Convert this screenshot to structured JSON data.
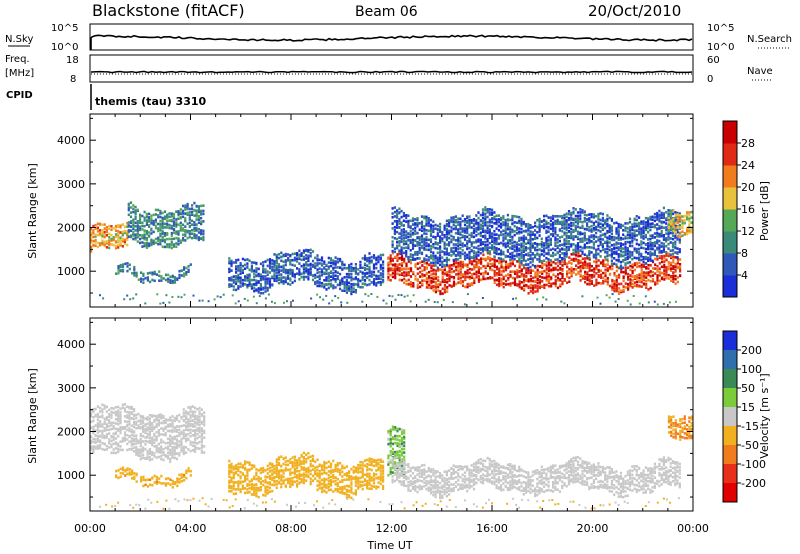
{
  "header": {
    "station": "Blackstone (fitACF)",
    "beam": "Beam 06",
    "date": "20/Oct/2010"
  },
  "nsky_panel": {
    "left_label": "N.Sky",
    "left_ticks": [
      "10^5",
      "10^0"
    ],
    "right_label": "N.Search",
    "right_ticks": [
      "10^5",
      "10^0"
    ]
  },
  "freq_panel": {
    "left_label_line1": "Freq.",
    "left_label_line2": "[MHz]",
    "left_ticks": [
      "18",
      "8"
    ],
    "right_label": "Nave",
    "right_ticks": [
      "60",
      "0"
    ]
  },
  "cpid_panel": {
    "left_label": "CPID",
    "program": "themis (tau) 3310"
  },
  "chart_data": [
    {
      "type": "heatmap",
      "name": "power",
      "xlabel": "",
      "ylabel": "Slant Range [km]",
      "yticks": [
        "1000",
        "2000",
        "3000",
        "4000"
      ],
      "ylim": [
        180,
        4600
      ],
      "colorbar_label": "Power [dB]",
      "colorbar_ticks": [
        "4",
        "8",
        "12",
        "16",
        "20",
        "24",
        "28"
      ],
      "colors": [
        "#1a2fd8",
        "#2f58b8",
        "#3a8a7a",
        "#55a855",
        "#e8c23a",
        "#f07c1e",
        "#e02a16",
        "#c80000"
      ],
      "features": [
        {
          "x_start": "00:00",
          "x_end": "01:30",
          "range_km": [
            1500,
            2000
          ],
          "power_db": 20
        },
        {
          "x_start": "01:30",
          "x_end": "04:30",
          "range_km": [
            1700,
            2500
          ],
          "power_db": 10
        },
        {
          "x_start": "01:00",
          "x_end": "04:00",
          "range_km": [
            900,
            1100
          ],
          "power_db": 9
        },
        {
          "x_start": "05:30",
          "x_end": "11:40",
          "range_km": [
            700,
            1400
          ],
          "power_db": 6
        },
        {
          "x_start": "11:50",
          "x_end": "23:30",
          "range_km": [
            700,
            1300
          ],
          "power_db": 26
        },
        {
          "x_start": "12:00",
          "x_end": "23:30",
          "range_km": [
            1300,
            2300
          ],
          "power_db": 6
        },
        {
          "x_start": "23:00",
          "x_end": "24:00",
          "range_km": [
            1800,
            2300
          ],
          "power_db": 18
        }
      ]
    },
    {
      "type": "heatmap",
      "name": "velocity",
      "xlabel": "Time UT",
      "ylabel": "Slant Range [km]",
      "yticks": [
        "1000",
        "2000",
        "3000",
        "4000"
      ],
      "ylim": [
        180,
        4600
      ],
      "colorbar_label": "Velocity [m s⁻¹]",
      "colorbar_ticks": [
        "200",
        "100",
        "50",
        "15",
        "-15",
        "-50",
        "-100",
        "-200"
      ],
      "colors": [
        "#1a2fd8",
        "#2f6fb0",
        "#3a8a55",
        "#7ccc3a",
        "#c8c8c8",
        "#f0b020",
        "#f07c1e",
        "#e83018",
        "#e00000"
      ],
      "features": [
        {
          "x_start": "00:00",
          "x_end": "04:30",
          "range_km": [
            1500,
            2500
          ],
          "velocity": 0
        },
        {
          "x_start": "01:00",
          "x_end": "04:00",
          "range_km": [
            900,
            1100
          ],
          "velocity": -40
        },
        {
          "x_start": "05:30",
          "x_end": "11:40",
          "range_km": [
            700,
            1400
          ],
          "velocity": -30
        },
        {
          "x_start": "11:50",
          "x_end": "12:30",
          "range_km": [
            900,
            2000
          ],
          "velocity": 25
        },
        {
          "x_start": "12:00",
          "x_end": "23:30",
          "range_km": [
            700,
            1300
          ],
          "velocity": 0
        },
        {
          "x_start": "23:00",
          "x_end": "24:00",
          "range_km": [
            1800,
            2300
          ],
          "velocity": -50
        }
      ]
    }
  ],
  "xaxis": {
    "ticks": [
      "00:00",
      "04:00",
      "08:00",
      "12:00",
      "16:00",
      "20:00",
      "00:00"
    ],
    "label": "Time UT"
  }
}
